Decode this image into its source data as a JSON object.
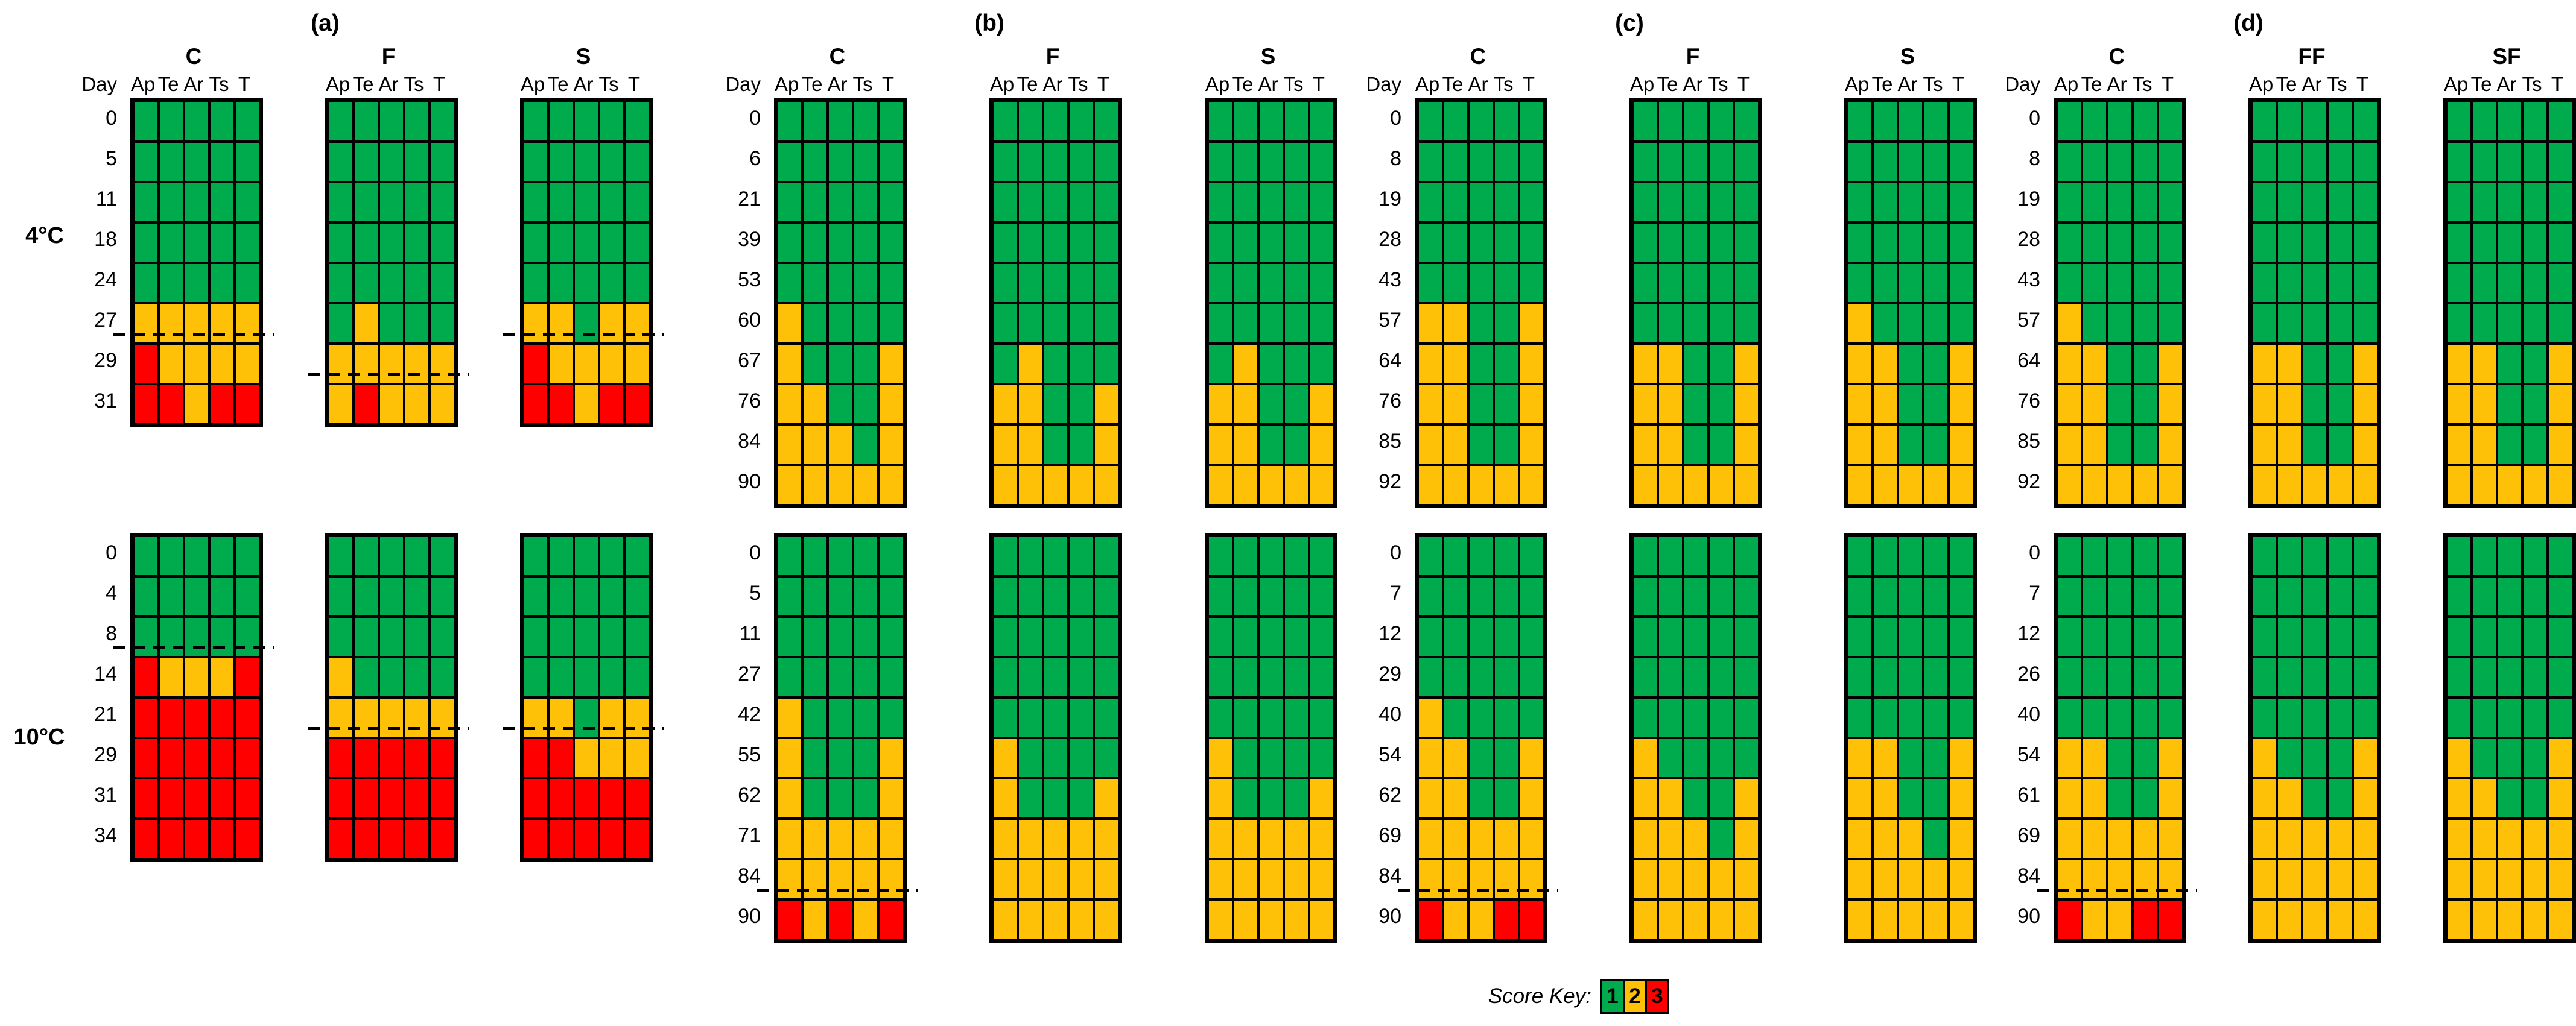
{
  "figure": {
    "day_header": "Day",
    "columns": [
      "Ap",
      "Te",
      "Ar",
      "Ts",
      "T"
    ],
    "temp_labels": {
      "top": "4°C",
      "bottom": "10°C"
    },
    "score_key_label": "Score Key:",
    "score_key": [
      {
        "score": "1",
        "color": "#00AB4E"
      },
      {
        "score": "2",
        "color": "#FFC107"
      },
      {
        "score": "3",
        "color": "#FF0000"
      }
    ]
  },
  "chart_data": {
    "type": "heatmap",
    "row_axis": "Day",
    "column_labels": [
      "Ap",
      "Te",
      "Ar",
      "Ts",
      "T"
    ],
    "score_colors": {
      "1": "#00AB4E",
      "2": "#FFC107",
      "3": "#FF0000"
    },
    "legend": {
      "label": "Score Key:",
      "values": [
        "1",
        "2",
        "3"
      ],
      "position": "bottom-center"
    },
    "temperatures": [
      "4°C",
      "10°C"
    ],
    "panels": [
      {
        "label": "(a)",
        "blocks": [
          {
            "temp": "4°C",
            "days": [
              0,
              5,
              11,
              18,
              24,
              27,
              29,
              31
            ],
            "grids": [
              {
                "name": "C",
                "dashed_after_day": 27,
                "rows": [
                  "11111",
                  "11111",
                  "11111",
                  "11111",
                  "11111",
                  "22222",
                  "32222",
                  "33233"
                ]
              },
              {
                "name": "F",
                "dashed_after_day": 29,
                "rows": [
                  "11111",
                  "11111",
                  "11111",
                  "11111",
                  "11111",
                  "12111",
                  "22222",
                  "23222"
                ]
              },
              {
                "name": "S",
                "dashed_after_day": 27,
                "rows": [
                  "11111",
                  "11111",
                  "11111",
                  "11111",
                  "11111",
                  "22122",
                  "32222",
                  "33233"
                ]
              }
            ]
          },
          {
            "temp": "10°C",
            "days": [
              0,
              4,
              8,
              14,
              21,
              29,
              31,
              34
            ],
            "grids": [
              {
                "name": "C",
                "dashed_after_day": 8,
                "rows": [
                  "11111",
                  "11111",
                  "11111",
                  "32223",
                  "33333",
                  "33333",
                  "33333",
                  "33333"
                ]
              },
              {
                "name": "F",
                "dashed_after_day": 21,
                "rows": [
                  "11111",
                  "11111",
                  "11111",
                  "21111",
                  "22222",
                  "33333",
                  "33333",
                  "33333"
                ]
              },
              {
                "name": "S",
                "dashed_after_day": 21,
                "rows": [
                  "11111",
                  "11111",
                  "11111",
                  "11111",
                  "22122",
                  "33222",
                  "33333",
                  "33333"
                ]
              }
            ]
          }
        ]
      },
      {
        "label": "(b)",
        "blocks": [
          {
            "temp": "4°C",
            "days": [
              0,
              6,
              21,
              39,
              53,
              60,
              67,
              76,
              84,
              90
            ],
            "grids": [
              {
                "name": "C",
                "dashed_after_day": null,
                "rows": [
                  "11111",
                  "11111",
                  "11111",
                  "11111",
                  "11111",
                  "21111",
                  "21112",
                  "22112",
                  "22212",
                  "22222"
                ]
              },
              {
                "name": "F",
                "dashed_after_day": null,
                "rows": [
                  "11111",
                  "11111",
                  "11111",
                  "11111",
                  "11111",
                  "11111",
                  "12111",
                  "22112",
                  "22112",
                  "22222"
                ]
              },
              {
                "name": "S",
                "dashed_after_day": null,
                "rows": [
                  "11111",
                  "11111",
                  "11111",
                  "11111",
                  "11111",
                  "11111",
                  "12111",
                  "22112",
                  "22112",
                  "22222"
                ]
              }
            ]
          },
          {
            "temp": "10°C",
            "days": [
              0,
              5,
              11,
              27,
              42,
              55,
              62,
              71,
              84,
              90
            ],
            "grids": [
              {
                "name": "C",
                "dashed_after_day": 84,
                "rows": [
                  "11111",
                  "11111",
                  "11111",
                  "11111",
                  "21111",
                  "21112",
                  "21112",
                  "22222",
                  "22222",
                  "32323"
                ]
              },
              {
                "name": "F",
                "dashed_after_day": null,
                "rows": [
                  "11111",
                  "11111",
                  "11111",
                  "11111",
                  "11111",
                  "21111",
                  "21112",
                  "22222",
                  "22222",
                  "22222"
                ]
              },
              {
                "name": "S",
                "dashed_after_day": null,
                "rows": [
                  "11111",
                  "11111",
                  "11111",
                  "11111",
                  "11111",
                  "21111",
                  "21112",
                  "22222",
                  "22222",
                  "22222"
                ]
              }
            ]
          }
        ]
      },
      {
        "label": "(c)",
        "blocks": [
          {
            "temp": "4°C",
            "days": [
              0,
              8,
              19,
              28,
              43,
              57,
              64,
              76,
              85,
              92
            ],
            "grids": [
              {
                "name": "C",
                "dashed_after_day": null,
                "rows": [
                  "11111",
                  "11111",
                  "11111",
                  "11111",
                  "11111",
                  "22112",
                  "22112",
                  "22112",
                  "22112",
                  "22222"
                ]
              },
              {
                "name": "F",
                "dashed_after_day": null,
                "rows": [
                  "11111",
                  "11111",
                  "11111",
                  "11111",
                  "11111",
                  "11111",
                  "22112",
                  "22112",
                  "22112",
                  "22222"
                ]
              },
              {
                "name": "S",
                "dashed_after_day": null,
                "rows": [
                  "11111",
                  "11111",
                  "11111",
                  "11111",
                  "11111",
                  "21111",
                  "22112",
                  "22112",
                  "22112",
                  "22222"
                ]
              }
            ]
          },
          {
            "temp": "10°C",
            "days": [
              0,
              7,
              12,
              29,
              40,
              54,
              62,
              69,
              84,
              90
            ],
            "grids": [
              {
                "name": "C",
                "dashed_after_day": 84,
                "rows": [
                  "11111",
                  "11111",
                  "11111",
                  "11111",
                  "21111",
                  "22112",
                  "22112",
                  "22222",
                  "22222",
                  "32233"
                ]
              },
              {
                "name": "F",
                "dashed_after_day": null,
                "rows": [
                  "11111",
                  "11111",
                  "11111",
                  "11111",
                  "11111",
                  "21111",
                  "22112",
                  "22212",
                  "22222",
                  "22222"
                ]
              },
              {
                "name": "S",
                "dashed_after_day": null,
                "rows": [
                  "11111",
                  "11111",
                  "11111",
                  "11111",
                  "11111",
                  "22112",
                  "22112",
                  "22212",
                  "22222",
                  "22222"
                ]
              }
            ]
          }
        ]
      },
      {
        "label": "(d)",
        "blocks": [
          {
            "temp": "4°C",
            "days": [
              0,
              8,
              19,
              28,
              43,
              57,
              64,
              76,
              85,
              92
            ],
            "grids": [
              {
                "name": "C",
                "dashed_after_day": null,
                "rows": [
                  "11111",
                  "11111",
                  "11111",
                  "11111",
                  "11111",
                  "21111",
                  "22112",
                  "22112",
                  "22112",
                  "22222"
                ]
              },
              {
                "name": "FF",
                "dashed_after_day": null,
                "rows": [
                  "11111",
                  "11111",
                  "11111",
                  "11111",
                  "11111",
                  "11111",
                  "22112",
                  "22112",
                  "22112",
                  "22222"
                ]
              },
              {
                "name": "SF",
                "dashed_after_day": null,
                "rows": [
                  "11111",
                  "11111",
                  "11111",
                  "11111",
                  "11111",
                  "11111",
                  "22112",
                  "22112",
                  "22112",
                  "22222"
                ]
              }
            ]
          },
          {
            "temp": "10°C",
            "days": [
              0,
              7,
              12,
              26,
              40,
              54,
              61,
              69,
              84,
              90
            ],
            "grids": [
              {
                "name": "C",
                "dashed_after_day": 84,
                "rows": [
                  "11111",
                  "11111",
                  "11111",
                  "11111",
                  "11111",
                  "22112",
                  "22112",
                  "22222",
                  "22222",
                  "32233"
                ]
              },
              {
                "name": "FF",
                "dashed_after_day": null,
                "rows": [
                  "11111",
                  "11111",
                  "11111",
                  "11111",
                  "11111",
                  "21112",
                  "22112",
                  "22222",
                  "22222",
                  "22222"
                ]
              },
              {
                "name": "SF",
                "dashed_after_day": null,
                "rows": [
                  "11111",
                  "11111",
                  "11111",
                  "11111",
                  "11111",
                  "21112",
                  "22112",
                  "22222",
                  "22222",
                  "22222"
                ]
              }
            ]
          }
        ]
      }
    ]
  }
}
